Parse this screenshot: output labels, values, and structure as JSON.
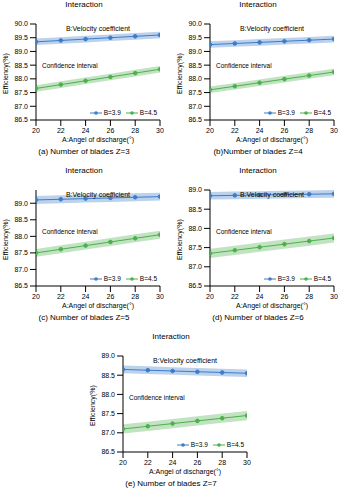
{
  "chart_data": [
    {
      "type": "line",
      "title": "Interaction",
      "subtitle": "B:Velocity coefficient",
      "annotation": "Confidence interval",
      "caption": "(a) Number of blades Z=3",
      "x_label": "A:Angel of discharge(°)",
      "y_label": "Efficiency(%)",
      "x": [
        20,
        22,
        24,
        26,
        28,
        30
      ],
      "xlim": [
        20,
        30
      ],
      "xticks": [
        20,
        22,
        24,
        26,
        28,
        30
      ],
      "ylim": [
        86.5,
        90
      ],
      "yticks": [
        86.5,
        {
          "value": 87,
          "label": "87.0"
        },
        87.5,
        {
          "value": 88,
          "label": "88.0"
        },
        88.5,
        {
          "value": 89,
          "label": "89.0"
        },
        89.5,
        {
          "value": 90,
          "label": "90.0"
        }
      ],
      "grid": false,
      "legend": "lower right",
      "marker": "circle",
      "series": [
        {
          "name": "B=3.9",
          "color": "#3d7cc9",
          "ci": 0.12,
          "values": [
            89.35,
            89.4,
            89.45,
            89.5,
            89.55,
            89.6
          ]
        },
        {
          "name": "B=4.5",
          "color": "#4cb04c",
          "ci": 0.12,
          "values": [
            87.65,
            87.79,
            87.93,
            88.07,
            88.21,
            88.35
          ]
        }
      ]
    },
    {
      "type": "line",
      "title": "Interaction",
      "subtitle": "B:Velocity coefficient",
      "annotation": "Confidence interval",
      "caption": "(b)Number of blades Z=4",
      "x_label": "A:Angel of discharge(°)",
      "y_label": "Efficiency(%)",
      "x": [
        20,
        22,
        24,
        26,
        28,
        30
      ],
      "xlim": [
        20,
        30
      ],
      "xticks": [
        20,
        22,
        24,
        26,
        28,
        30
      ],
      "ylim": [
        86.5,
        90
      ],
      "yticks": [
        86.5,
        {
          "value": 87,
          "label": "87.0"
        },
        87.5,
        {
          "value": 88,
          "label": "88.0"
        },
        88.5,
        {
          "value": 89,
          "label": "89.0"
        },
        89.5,
        {
          "value": 90,
          "label": "90.0"
        }
      ],
      "grid": false,
      "legend": "lower right",
      "marker": "circle",
      "series": [
        {
          "name": "B=3.9",
          "color": "#3d7cc9",
          "ci": 0.12,
          "values": [
            89.25,
            89.29,
            89.33,
            89.37,
            89.41,
            89.45
          ]
        },
        {
          "name": "B=4.5",
          "color": "#4cb04c",
          "ci": 0.12,
          "values": [
            87.6,
            87.73,
            87.86,
            87.99,
            88.12,
            88.25
          ]
        }
      ]
    },
    {
      "type": "line",
      "title": "Interaction",
      "subtitle": "B:Velocity coefficient",
      "annotation": "Confidence interval",
      "caption": "(c) Number of blades Z=5",
      "x_label": "A:Angel of discharge(°)",
      "y_label": "Efficiency(%)",
      "x": [
        20,
        22,
        24,
        26,
        28,
        30
      ],
      "xlim": [
        20,
        30
      ],
      "xticks": [
        20,
        22,
        24,
        26,
        28,
        30
      ],
      "ylim": [
        86.5,
        89.4
      ],
      "yticks": [
        86.5,
        {
          "value": 87,
          "label": "87.0"
        },
        87.5,
        {
          "value": 88,
          "label": "88.0"
        },
        88.5,
        {
          "value": 89,
          "label": "89.0"
        }
      ],
      "grid": false,
      "legend": "lower right",
      "marker": "circle",
      "series": [
        {
          "name": "B=3.9",
          "color": "#3d7cc9",
          "ci": 0.12,
          "values": [
            89.1,
            89.12,
            89.14,
            89.16,
            89.18,
            89.2
          ]
        },
        {
          "name": "B=4.5",
          "color": "#4cb04c",
          "ci": 0.12,
          "values": [
            87.5,
            87.61,
            87.72,
            87.83,
            87.94,
            88.05
          ]
        }
      ]
    },
    {
      "type": "line",
      "title": "Interaction",
      "subtitle": "B:Velocity coefficient",
      "annotation": "Confidence interval",
      "caption": "(d) Number of blades Z=6",
      "x_label": "A:Angel of discharge(°)",
      "y_label": "Efficiency(%)",
      "x": [
        20,
        22,
        24,
        26,
        28,
        30
      ],
      "xlim": [
        20,
        30
      ],
      "xticks": [
        20,
        22,
        24,
        26,
        28,
        30
      ],
      "ylim": [
        86.5,
        89
      ],
      "yticks": [
        86.5,
        {
          "value": 87,
          "label": "87.0"
        },
        87.5,
        {
          "value": 88,
          "label": "88.0"
        },
        88.5,
        {
          "value": 89,
          "label": "89.0"
        }
      ],
      "grid": false,
      "legend": "lower right",
      "marker": "circle",
      "series": [
        {
          "name": "B=3.9",
          "color": "#3d7cc9",
          "ci": 0.1,
          "values": [
            88.85,
            88.86,
            88.87,
            88.88,
            88.89,
            88.9
          ]
        },
        {
          "name": "B=4.5",
          "color": "#4cb04c",
          "ci": 0.12,
          "values": [
            87.35,
            87.43,
            87.51,
            87.59,
            87.67,
            87.75
          ]
        }
      ]
    },
    {
      "type": "line",
      "title": "Interaction",
      "subtitle": "B:Velocity coefficient",
      "annotation": "Confidence interval",
      "caption": "(e) Number of blades Z=7",
      "x_label": "A:Angel of discharge(°)",
      "y_label": "Efficiency(%)",
      "x": [
        20,
        22,
        24,
        26,
        28,
        30
      ],
      "xlim": [
        20,
        30
      ],
      "xticks": [
        20,
        22,
        24,
        26,
        28,
        30
      ],
      "ylim": [
        86.5,
        89
      ],
      "yticks": [
        86.5,
        {
          "value": 87,
          "label": "87.0"
        },
        87.5,
        {
          "value": 88,
          "label": "88.0"
        },
        88.5,
        {
          "value": 89,
          "label": "89.0"
        }
      ],
      "grid": false,
      "legend": "lower right",
      "marker": "circle",
      "series": [
        {
          "name": "B=3.9",
          "color": "#3d7cc9",
          "ci": 0.1,
          "values": [
            88.65,
            88.63,
            88.61,
            88.59,
            88.57,
            88.55
          ]
        },
        {
          "name": "B=4.5",
          "color": "#4cb04c",
          "ci": 0.12,
          "values": [
            87.1,
            87.17,
            87.24,
            87.31,
            87.38,
            87.45
          ]
        }
      ]
    }
  ]
}
